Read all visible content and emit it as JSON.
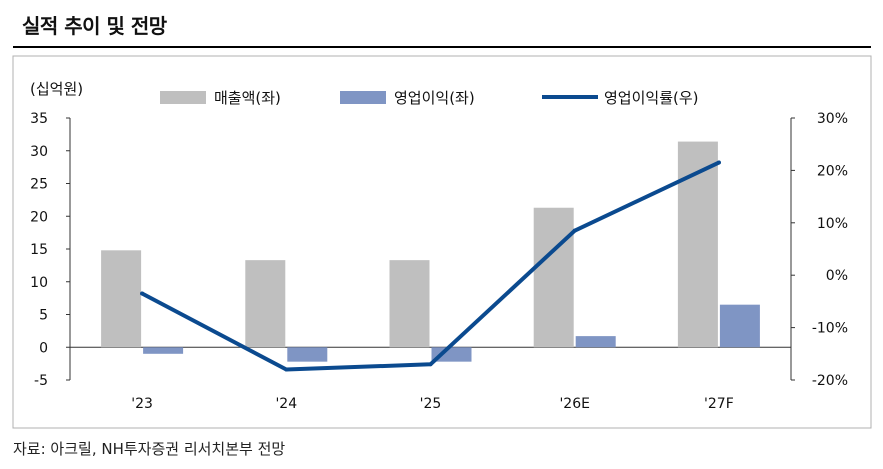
{
  "title": "실적 추이 및 전망",
  "source": "자료: 아크릴, NH투자증권 리서치본부 전망",
  "chart_data": {
    "type": "bar+line",
    "unit_label": "(십억원)",
    "categories": [
      "'23",
      "'24",
      "'25",
      "'26E",
      "'27F"
    ],
    "series": [
      {
        "name": "매출액(좌)",
        "type": "bar",
        "axis": "left",
        "color": "#bfbfbf",
        "values": [
          14.8,
          13.3,
          13.3,
          21.3,
          31.4
        ]
      },
      {
        "name": "영업이익(좌)",
        "type": "bar",
        "axis": "left",
        "color": "#7f95c4",
        "values": [
          -1.0,
          -2.2,
          -2.2,
          1.7,
          6.5
        ]
      },
      {
        "name": "영업이익률(우)",
        "type": "line",
        "axis": "right",
        "color": "#0b4a8f",
        "values": [
          -3.5,
          -18.0,
          -17.0,
          8.5,
          21.5
        ]
      }
    ],
    "y_left": {
      "min": -5,
      "max": 35,
      "ticks": [
        35,
        30,
        25,
        20,
        15,
        10,
        5,
        0,
        -5
      ],
      "tick_labels": [
        "35",
        "30",
        "25",
        "20",
        "15",
        "10",
        "5",
        "0",
        "-5"
      ]
    },
    "y_right": {
      "min": -20,
      "max": 30,
      "ticks": [
        30,
        20,
        10,
        0,
        -10,
        -20
      ],
      "tick_labels": [
        "30%",
        "20%",
        "10%",
        "0%",
        "-10%",
        "-20%"
      ]
    },
    "legend_position": "top",
    "grid": false
  }
}
